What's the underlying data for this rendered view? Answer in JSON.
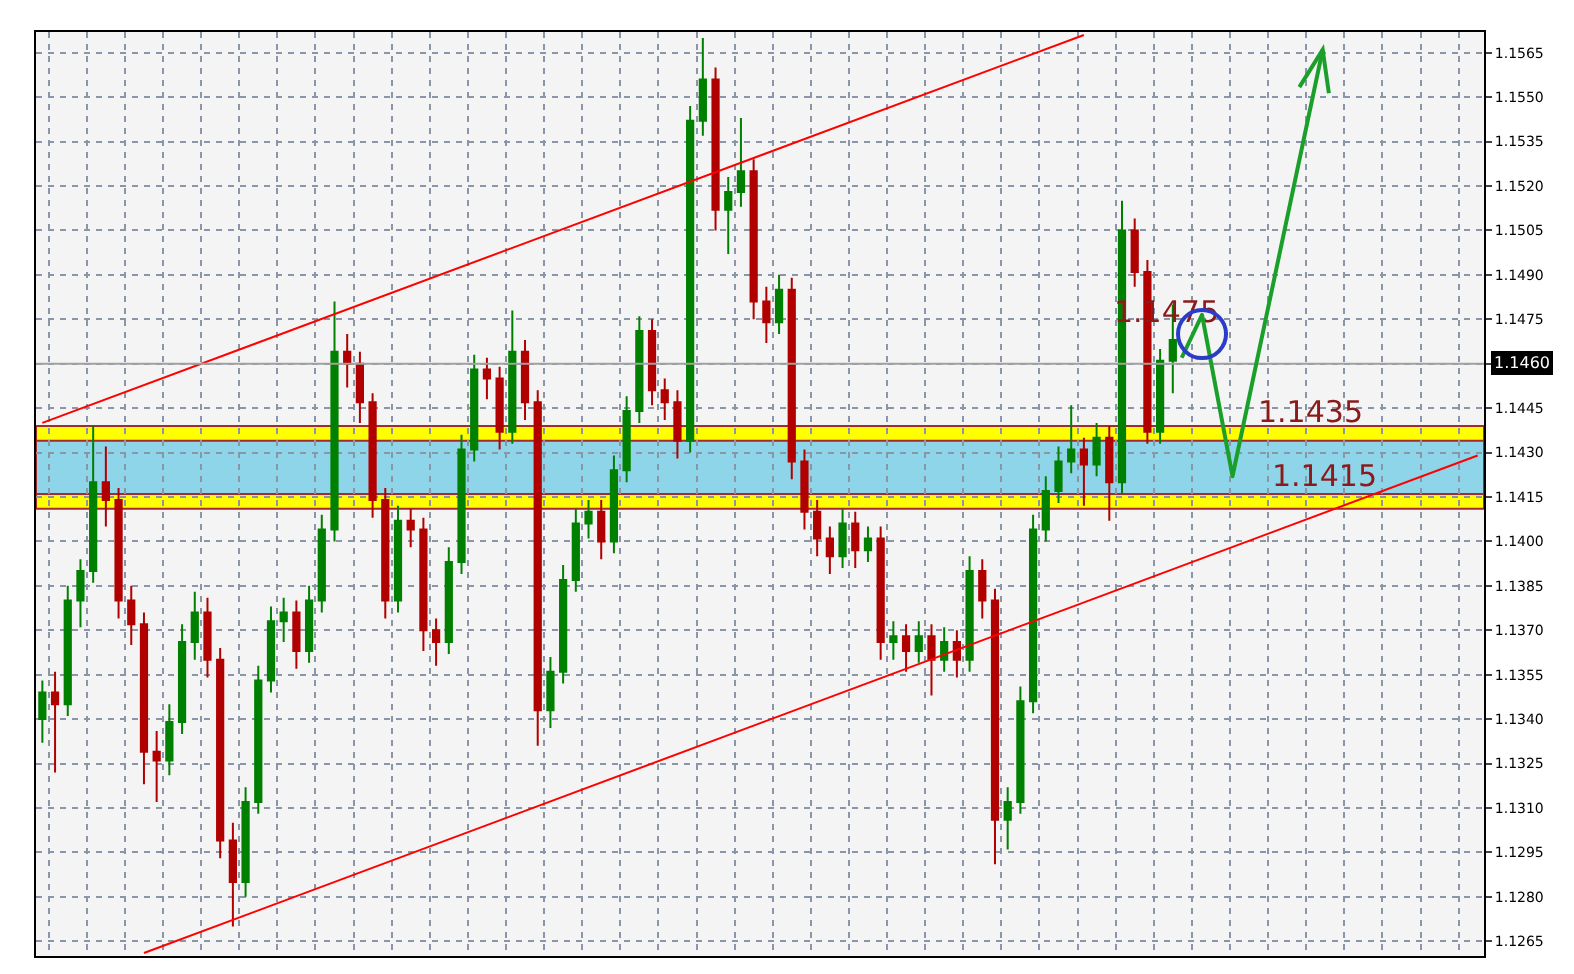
{
  "chart_data": {
    "type": "candlestick",
    "categories": [
      null,
      null,
      null,
      null,
      null,
      null,
      null,
      null,
      null,
      null,
      null,
      null,
      null,
      null,
      null,
      null,
      null,
      null,
      null,
      null,
      null,
      null,
      null,
      null,
      null,
      null,
      null,
      null,
      null,
      null,
      null,
      null,
      null,
      null,
      null,
      null,
      null,
      null,
      null,
      null,
      null,
      null,
      null,
      null,
      null,
      null,
      null,
      null,
      null,
      null,
      null,
      null,
      null,
      null,
      null,
      null,
      null,
      null,
      null,
      null,
      null,
      null,
      null,
      null,
      null,
      null,
      null,
      null,
      null,
      null,
      null,
      null,
      null,
      null,
      null,
      null,
      null,
      null,
      null,
      null,
      null,
      null,
      null,
      null,
      null,
      null,
      null,
      null,
      null,
      null,
      null,
      null,
      null,
      null,
      null,
      null,
      null,
      null,
      null,
      null,
      null,
      null,
      null,
      null,
      null,
      null,
      null,
      null,
      null,
      null,
      null,
      null,
      null,
      null
    ],
    "ohlc": [
      [
        1.134,
        1.1353,
        1.1332,
        1.1349
      ],
      [
        1.1349,
        1.1356,
        1.1322,
        1.1345
      ],
      [
        1.1345,
        1.1385,
        1.1341,
        1.138
      ],
      [
        1.138,
        1.1394,
        1.1371,
        1.139
      ],
      [
        1.139,
        1.1439,
        1.1386,
        1.142
      ],
      [
        1.142,
        1.1432,
        1.1405,
        1.1414
      ],
      [
        1.1414,
        1.1418,
        1.1374,
        1.138
      ],
      [
        1.138,
        1.1385,
        1.1365,
        1.1372
      ],
      [
        1.1372,
        1.1376,
        1.1318,
        1.1329
      ],
      [
        1.1329,
        1.1336,
        1.1312,
        1.1326
      ],
      [
        1.1326,
        1.1345,
        1.1321,
        1.1339
      ],
      [
        1.1339,
        1.1372,
        1.1335,
        1.1366
      ],
      [
        1.1366,
        1.1383,
        1.136,
        1.1376
      ],
      [
        1.1376,
        1.1381,
        1.1354,
        1.136
      ],
      [
        1.136,
        1.1364,
        1.1293,
        1.1299
      ],
      [
        1.1299,
        1.1305,
        1.127,
        1.1285
      ],
      [
        1.1285,
        1.1317,
        1.128,
        1.1312
      ],
      [
        1.1312,
        1.1358,
        1.1308,
        1.1353
      ],
      [
        1.1353,
        1.1378,
        1.1349,
        1.1373
      ],
      [
        1.1373,
        1.1381,
        1.1366,
        1.1376
      ],
      [
        1.1376,
        1.138,
        1.1357,
        1.1363
      ],
      [
        1.1363,
        1.1385,
        1.1359,
        1.138
      ],
      [
        1.138,
        1.1409,
        1.1376,
        1.1404
      ],
      [
        1.1404,
        1.1481,
        1.14,
        1.1464
      ],
      [
        1.1464,
        1.147,
        1.1452,
        1.146
      ],
      [
        1.146,
        1.1464,
        1.144,
        1.1447
      ],
      [
        1.1447,
        1.145,
        1.1408,
        1.1414
      ],
      [
        1.1414,
        1.1418,
        1.1374,
        1.138
      ],
      [
        1.138,
        1.1412,
        1.1376,
        1.1407
      ],
      [
        1.1407,
        1.1411,
        1.1398,
        1.1404
      ],
      [
        1.1404,
        1.1408,
        1.1363,
        1.137
      ],
      [
        1.137,
        1.1374,
        1.1358,
        1.1366
      ],
      [
        1.1366,
        1.1398,
        1.1362,
        1.1393
      ],
      [
        1.1393,
        1.1436,
        1.1389,
        1.1431
      ],
      [
        1.1431,
        1.1463,
        1.1427,
        1.1458
      ],
      [
        1.1458,
        1.1462,
        1.1448,
        1.1455
      ],
      [
        1.1455,
        1.1459,
        1.1431,
        1.1437
      ],
      [
        1.1437,
        1.1478,
        1.1433,
        1.1464
      ],
      [
        1.1464,
        1.1468,
        1.1441,
        1.1447
      ],
      [
        1.1447,
        1.1451,
        1.1331,
        1.1343
      ],
      [
        1.1343,
        1.1361,
        1.1337,
        1.1356
      ],
      [
        1.1356,
        1.1392,
        1.1352,
        1.1387
      ],
      [
        1.1387,
        1.1411,
        1.1383,
        1.1406
      ],
      [
        1.1406,
        1.1414,
        1.1401,
        1.141
      ],
      [
        1.141,
        1.1414,
        1.1394,
        1.14
      ],
      [
        1.14,
        1.1429,
        1.1396,
        1.1424
      ],
      [
        1.1424,
        1.1449,
        1.142,
        1.1444
      ],
      [
        1.1444,
        1.1476,
        1.144,
        1.1471
      ],
      [
        1.1471,
        1.1475,
        1.1446,
        1.1451
      ],
      [
        1.1451,
        1.1455,
        1.1441,
        1.1447
      ],
      [
        1.1447,
        1.1451,
        1.1428,
        1.1434
      ],
      [
        1.1434,
        1.1547,
        1.143,
        1.1542
      ],
      [
        1.1542,
        1.157,
        1.1537,
        1.1556
      ],
      [
        1.1556,
        1.156,
        1.1505,
        1.1512
      ],
      [
        1.1512,
        1.1523,
        1.1497,
        1.1518
      ],
      [
        1.1518,
        1.1543,
        1.1513,
        1.1525
      ],
      [
        1.1525,
        1.1529,
        1.1475,
        1.1481
      ],
      [
        1.1481,
        1.1486,
        1.1467,
        1.1474
      ],
      [
        1.1474,
        1.149,
        1.147,
        1.1485
      ],
      [
        1.1485,
        1.1489,
        1.1421,
        1.1427
      ],
      [
        1.1427,
        1.1431,
        1.1404,
        1.141
      ],
      [
        1.141,
        1.1414,
        1.1395,
        1.1401
      ],
      [
        1.1401,
        1.1405,
        1.1389,
        1.1395
      ],
      [
        1.1395,
        1.1411,
        1.1391,
        1.1406
      ],
      [
        1.1406,
        1.141,
        1.1391,
        1.1397
      ],
      [
        1.1397,
        1.1405,
        1.1393,
        1.1401
      ],
      [
        1.1401,
        1.1405,
        1.136,
        1.1366
      ],
      [
        1.1366,
        1.1373,
        1.136,
        1.1368
      ],
      [
        1.1368,
        1.1372,
        1.1356,
        1.1363
      ],
      [
        1.1363,
        1.1373,
        1.1359,
        1.1368
      ],
      [
        1.1368,
        1.1372,
        1.1348,
        1.136
      ],
      [
        1.136,
        1.1371,
        1.1356,
        1.1366
      ],
      [
        1.1366,
        1.137,
        1.1354,
        1.136
      ],
      [
        1.136,
        1.1395,
        1.1356,
        1.139
      ],
      [
        1.139,
        1.1394,
        1.1374,
        1.138
      ],
      [
        1.138,
        1.1384,
        1.1291,
        1.1306
      ],
      [
        1.1306,
        1.1317,
        1.1296,
        1.1312
      ],
      [
        1.1312,
        1.1351,
        1.1308,
        1.1346
      ],
      [
        1.1346,
        1.1409,
        1.1342,
        1.1404
      ],
      [
        1.1404,
        1.1422,
        1.14,
        1.1417
      ],
      [
        1.1417,
        1.1432,
        1.1413,
        1.1427
      ],
      [
        1.1427,
        1.1446,
        1.1423,
        1.1431
      ],
      [
        1.1431,
        1.1435,
        1.1412,
        1.1426
      ],
      [
        1.1426,
        1.144,
        1.1422,
        1.1435
      ],
      [
        1.1435,
        1.1439,
        1.1407,
        1.142
      ],
      [
        1.142,
        1.1515,
        1.1416,
        1.1505
      ],
      [
        1.1505,
        1.1509,
        1.1486,
        1.1491
      ],
      [
        1.1491,
        1.1495,
        1.1433,
        1.1437
      ],
      [
        1.1437,
        1.1465,
        1.1433,
        1.1461
      ],
      [
        1.1461,
        1.148,
        1.145,
        1.1468
      ],
      null,
      null,
      null,
      null,
      null,
      null,
      null,
      null,
      null,
      null,
      null,
      null,
      null,
      null,
      null,
      null,
      null,
      null,
      null,
      null,
      null,
      null,
      null,
      null
    ],
    "series": [
      {
        "type": "line",
        "color": "#ff0000",
        "values": [
          1.144,
          null,
          null,
          null,
          null,
          null,
          null,
          null,
          null,
          null,
          null,
          null,
          null,
          null,
          null,
          null,
          null,
          null,
          null,
          null,
          null,
          null,
          null,
          null,
          null,
          null,
          null,
          null,
          null,
          null,
          null,
          null,
          null,
          null,
          null,
          null,
          null,
          null,
          null,
          null,
          null,
          null,
          null,
          null,
          null,
          null,
          null,
          null,
          null,
          null,
          null,
          null,
          null,
          null,
          null,
          null,
          null,
          null,
          null,
          null,
          null,
          null,
          null,
          null,
          null,
          null,
          null,
          null,
          null,
          null,
          null,
          null,
          null,
          null,
          null,
          null,
          null,
          null,
          null,
          null,
          null,
          null,
          1.1571,
          null,
          null,
          null,
          null,
          null,
          null,
          null,
          null,
          null,
          null,
          null,
          null,
          null,
          null,
          null,
          null,
          null,
          null,
          null,
          null,
          null,
          null,
          null,
          null,
          null,
          null,
          null,
          null,
          null,
          null,
          null
        ]
      },
      {
        "type": "line",
        "color": "#ff0000",
        "values": [
          null,
          null,
          null,
          null,
          null,
          null,
          null,
          null,
          1.1261,
          null,
          null,
          null,
          null,
          null,
          null,
          null,
          null,
          null,
          null,
          null,
          null,
          null,
          null,
          null,
          null,
          null,
          null,
          null,
          null,
          null,
          null,
          null,
          null,
          null,
          null,
          null,
          null,
          null,
          null,
          null,
          null,
          null,
          null,
          null,
          null,
          null,
          null,
          null,
          null,
          null,
          null,
          null,
          null,
          null,
          null,
          null,
          null,
          null,
          null,
          null,
          null,
          null,
          null,
          null,
          null,
          null,
          null,
          null,
          null,
          null,
          null,
          null,
          null,
          null,
          null,
          null,
          null,
          null,
          null,
          null,
          null,
          null,
          null,
          null,
          null,
          null,
          null,
          null,
          null,
          null,
          null,
          null,
          null,
          null,
          null,
          null,
          null,
          null,
          null,
          null,
          null,
          null,
          null,
          null,
          null,
          null,
          null,
          null,
          null,
          null,
          null,
          null,
          null,
          1.1429
        ]
      }
    ],
    "ylim": [
      1.126,
      1.1572
    ],
    "yticks": [
      1.1265,
      {
        "value": 1.128,
        "label": "1.1280"
      },
      1.1295,
      {
        "value": 1.131,
        "label": "1.1310"
      },
      1.1325,
      {
        "value": 1.134,
        "label": "1.1340"
      },
      1.1355,
      {
        "value": 1.137,
        "label": "1.1370"
      },
      1.1385,
      {
        "value": 1.14,
        "label": "1.1400"
      },
      1.1415,
      {
        "value": 1.143,
        "label": "1.1430"
      },
      1.1445,
      {
        "value": 1.146,
        "label": null
      },
      1.1475,
      {
        "value": 1.149,
        "label": "1.1490"
      },
      1.1505,
      {
        "value": 1.152,
        "label": "1.1520"
      },
      1.1535,
      {
        "value": 1.155,
        "label": "1.1550"
      },
      1.1565
    ],
    "grid": true,
    "tick_labels": "y",
    "ref_lines": [
      {
        "axis": "y",
        "value": 1.146,
        "label": "1.1460",
        "color": "#a0a0a0"
      }
    ],
    "bands": [
      {
        "axis": "y",
        "from": 1.1411,
        "to": 1.1439,
        "color": "#ffff00"
      },
      {
        "axis": "y",
        "from": 1.1416,
        "to": 1.1434,
        "color": "#8fd5ea"
      }
    ],
    "annotations": [
      "1.1475",
      {
        "text": "1.1435",
        "y": 1.1435
      },
      {
        "text": "1.1415",
        "y": 1.1415
      }
    ]
  }
}
